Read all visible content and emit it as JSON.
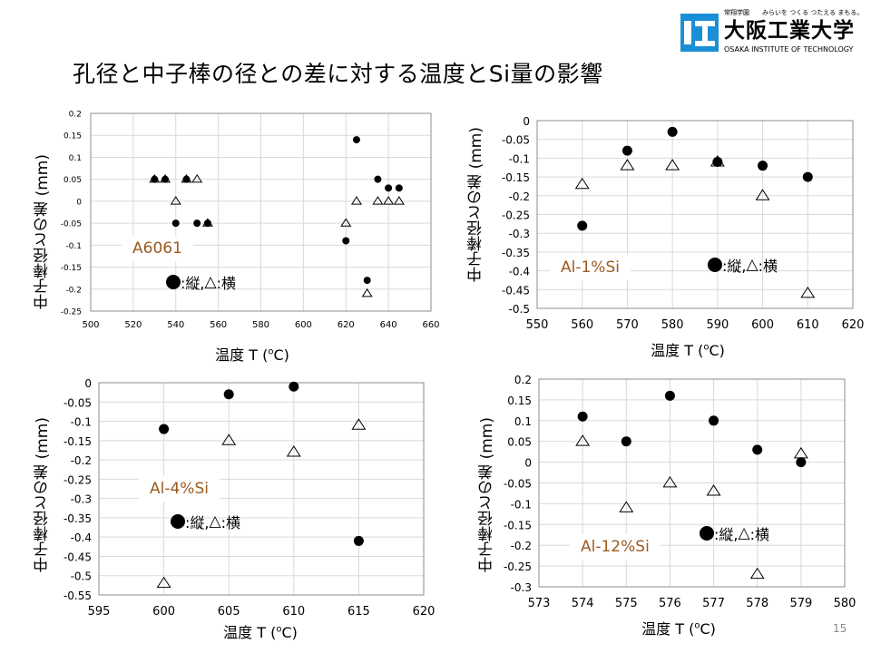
{
  "title": "孔径と中子棒の径との差に対する温度とSi量の影響",
  "logo": {
    "tagline": "常翔学園　　みらいを つくる つたえる まもる。",
    "name_jp": "大阪工業大学",
    "name_en": "OSAKA INSTITUTE OF TECHNOLOGY"
  },
  "page_number": "15",
  "colors": {
    "marker": "#000000",
    "sample_label": "#9c5a1e",
    "grid": "#d9d9d9",
    "frame": "#8c8c8c"
  },
  "legend": {
    "circle_label": ":縦,",
    "triangle_glyph": "△",
    "triangle_label": ":横"
  },
  "chart_data": [
    {
      "type": "scatter",
      "sample_label": "A6061",
      "ylabel": "中子棒径との差 (mm)",
      "xlabel_main": "温度 T (",
      "xlabel_sup": "o",
      "xlabel_end": "C)",
      "xlim": [
        500,
        660
      ],
      "ylim": [
        -0.25,
        0.2
      ],
      "grid": true,
      "xticks": [
        500,
        520,
        540,
        560,
        580,
        600,
        620,
        640,
        660
      ],
      "yticks": [
        0.2,
        0.15,
        0.1,
        0.05,
        0,
        -0.05,
        -0.1,
        -0.15,
        -0.2,
        -0.25
      ],
      "series": [
        {
          "name": "縦",
          "marker": "circle",
          "x": [
            530,
            535,
            545,
            540,
            550,
            555,
            620,
            625,
            630,
            635,
            640,
            645
          ],
          "y": [
            0.05,
            0.05,
            0.05,
            -0.05,
            -0.05,
            -0.05,
            -0.09,
            0.14,
            -0.18,
            0.05,
            0.03,
            0.03
          ]
        },
        {
          "name": "横",
          "marker": "triangle",
          "x": [
            530,
            535,
            545,
            550,
            540,
            555,
            620,
            625,
            630,
            635,
            640,
            645
          ],
          "y": [
            0.05,
            0.05,
            0.05,
            0.05,
            0,
            -0.05,
            -0.05,
            0,
            -0.21,
            0,
            0,
            0
          ]
        }
      ]
    },
    {
      "type": "scatter",
      "sample_label": "Al-1%Si",
      "ylabel": "中子棒径との差 (mm)",
      "xlabel_main": "温度 T (",
      "xlabel_sup": "o",
      "xlabel_end": "C)",
      "xlim": [
        550,
        620
      ],
      "ylim": [
        -0.5,
        0
      ],
      "grid": true,
      "xticks": [
        550,
        560,
        570,
        580,
        590,
        600,
        610,
        620
      ],
      "yticks": [
        0,
        -0.05,
        -0.1,
        -0.15,
        -0.2,
        -0.25,
        -0.3,
        -0.35,
        -0.4,
        -0.45,
        -0.5
      ],
      "series": [
        {
          "name": "縦",
          "marker": "circle",
          "x": [
            560,
            570,
            580,
            590,
            600,
            610
          ],
          "y": [
            -0.28,
            -0.08,
            -0.03,
            -0.11,
            -0.12,
            -0.15
          ]
        },
        {
          "name": "横",
          "marker": "triangle",
          "x": [
            560,
            570,
            580,
            590,
            600,
            610
          ],
          "y": [
            -0.17,
            -0.12,
            -0.12,
            -0.11,
            -0.2,
            -0.46
          ]
        }
      ]
    },
    {
      "type": "scatter",
      "sample_label": "Al-4%Si",
      "ylabel": "中子棒径との差 (mm)",
      "xlabel_main": "温度 T (",
      "xlabel_sup": "o",
      "xlabel_end": "C)",
      "xlim": [
        595,
        620
      ],
      "ylim": [
        -0.55,
        0
      ],
      "grid": true,
      "xticks": [
        595,
        600,
        605,
        610,
        615,
        620
      ],
      "yticks": [
        0,
        -0.05,
        -0.1,
        -0.15,
        -0.2,
        -0.25,
        -0.3,
        -0.35,
        -0.4,
        -0.45,
        -0.5,
        -0.55
      ],
      "series": [
        {
          "name": "縦",
          "marker": "circle",
          "x": [
            600,
            605,
            610,
            615
          ],
          "y": [
            -0.12,
            -0.03,
            -0.01,
            -0.41
          ]
        },
        {
          "name": "横",
          "marker": "triangle",
          "x": [
            600,
            605,
            610,
            615
          ],
          "y": [
            -0.52,
            -0.15,
            -0.18,
            -0.11
          ]
        }
      ]
    },
    {
      "type": "scatter",
      "sample_label": "Al-12%Si",
      "ylabel": "中子棒径との差 (mm)",
      "xlabel_main": "温度 T (",
      "xlabel_sup": "o",
      "xlabel_end": "C)",
      "xlim": [
        573,
        580
      ],
      "ylim": [
        -0.3,
        0.2
      ],
      "grid": true,
      "xticks": [
        573,
        574,
        575,
        576,
        577,
        578,
        579,
        580
      ],
      "yticks": [
        0.2,
        0.15,
        0.1,
        0.05,
        0,
        -0.05,
        -0.1,
        -0.15,
        -0.2,
        -0.25,
        -0.3
      ],
      "series": [
        {
          "name": "縦",
          "marker": "circle",
          "x": [
            574,
            575,
            576,
            577,
            578,
            579
          ],
          "y": [
            0.11,
            0.05,
            0.16,
            0.1,
            0.03,
            0
          ]
        },
        {
          "name": "横",
          "marker": "triangle",
          "x": [
            574,
            575,
            576,
            577,
            578,
            579
          ],
          "y": [
            0.05,
            -0.11,
            -0.05,
            -0.07,
            -0.27,
            0.02
          ]
        }
      ]
    }
  ]
}
